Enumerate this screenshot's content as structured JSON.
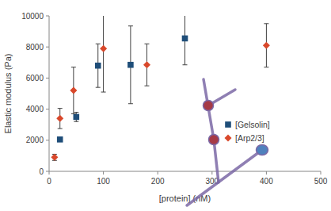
{
  "chart_data": {
    "type": "scatter",
    "x_label": "[protein] (nM)",
    "y_label": "Elastic modulus (Pa)",
    "xlim": [
      0,
      500
    ],
    "xticks": [
      0,
      100,
      200,
      300,
      400,
      500
    ],
    "ylim": [
      0,
      10000
    ],
    "yticks": [
      0,
      2000,
      4000,
      6000,
      8000,
      10000
    ],
    "grid": false,
    "legend": "lower right",
    "series": [
      {
        "name": "[Gelsolin]",
        "color": "#1f4e79",
        "marker": "square",
        "x": [
          20,
          50,
          90,
          150,
          250
        ],
        "values": [
          2050,
          3500,
          6800,
          6850,
          8550
        ],
        "errors": [
          100,
          300,
          1400,
          2500,
          1700
        ]
      },
      {
        "name": "[Arp2/3]",
        "color": "#d9482b",
        "marker": "diamond",
        "x": [
          10,
          20,
          45,
          100,
          180,
          400
        ],
        "values": [
          900,
          3400,
          5200,
          7900,
          6850,
          8100
        ],
        "errors": [
          200,
          650,
          1500,
          2800,
          1350,
          1400
        ]
      }
    ]
  }
}
